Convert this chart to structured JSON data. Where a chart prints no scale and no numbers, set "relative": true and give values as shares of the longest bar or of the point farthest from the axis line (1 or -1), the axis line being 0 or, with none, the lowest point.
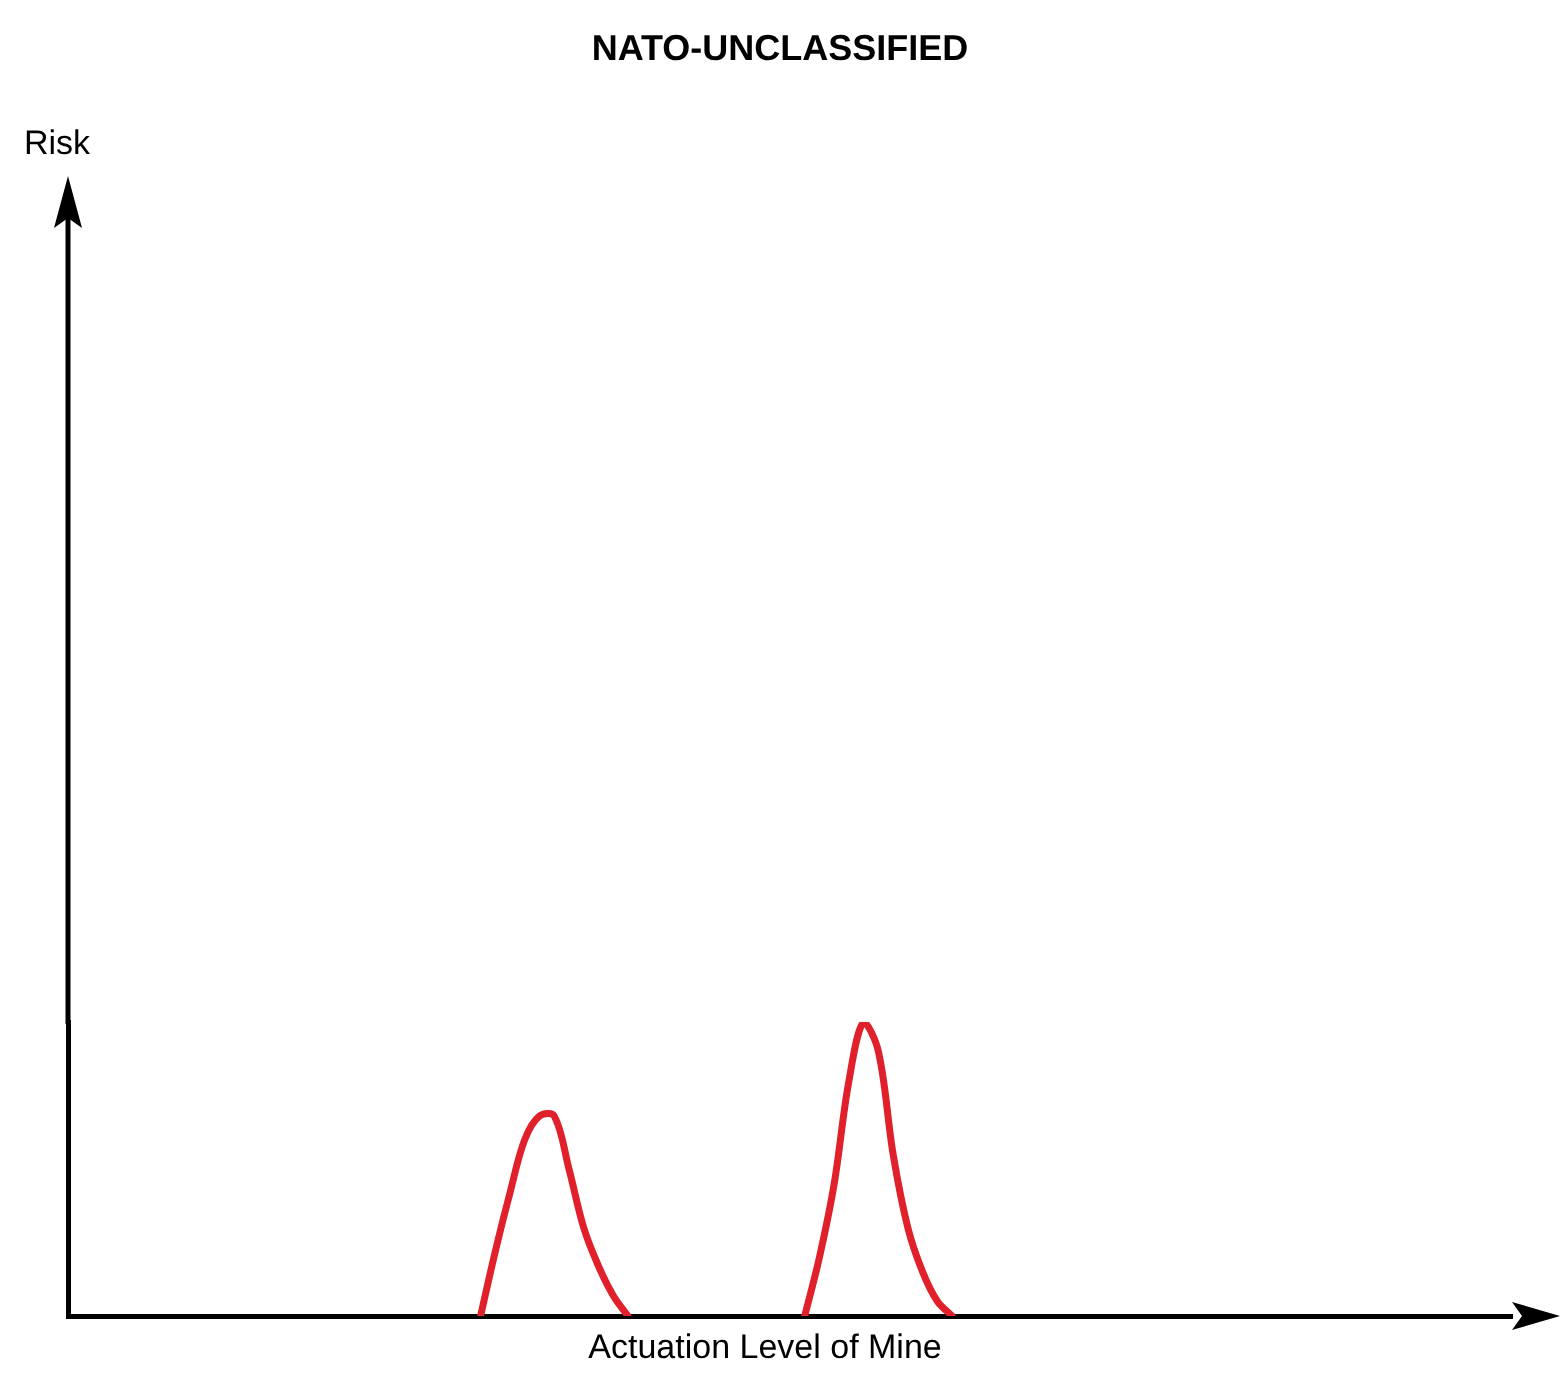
{
  "chart_data": {
    "type": "line",
    "title": "NATO-UNCLASSIFIED",
    "xlabel": "Actuation Level of Mine",
    "annotations": [
      "Risk"
    ],
    "relative": true,
    "legend": false,
    "grid": false,
    "marker": "none",
    "tick_labels": false,
    "categories": [
      null,
      null,
      null,
      null,
      null,
      null,
      null,
      null,
      null,
      null,
      null,
      null,
      null,
      null,
      null,
      null,
      null,
      null,
      null,
      null,
      null,
      null,
      null,
      null,
      null,
      null,
      null,
      null,
      null,
      null,
      null,
      null,
      null,
      null,
      null,
      null,
      null,
      null,
      null,
      null,
      null,
      null,
      null,
      null,
      null,
      null,
      null,
      null,
      null,
      null,
      null,
      null,
      null,
      null,
      null,
      null,
      null,
      null,
      null,
      null,
      null,
      null,
      null,
      null,
      null,
      null,
      null,
      null,
      null,
      null,
      null,
      null,
      null,
      null,
      null,
      null,
      null,
      null,
      null,
      null,
      null,
      null,
      null,
      null,
      null,
      null,
      null,
      null,
      null,
      null,
      null,
      null,
      null,
      null,
      null,
      null,
      null,
      null,
      null
    ],
    "series": [
      {
        "color": "#e0202a",
        "values": [
          null,
          null,
          null,
          null,
          null,
          null,
          null,
          null,
          null,
          null,
          null,
          null,
          null,
          null,
          null,
          null,
          null,
          null,
          null,
          null,
          null,
          null,
          null,
          null,
          null,
          null,
          null,
          null,
          0,
          0.22,
          0.42,
          0.6,
          0.68,
          0.68,
          0.5,
          0.3,
          0.17,
          0.07,
          0,
          null,
          null,
          null,
          null,
          null,
          null,
          null,
          null,
          null,
          null,
          null,
          null,
          null,
          null,
          null,
          null,
          null,
          null,
          null,
          null,
          null,
          null,
          null,
          null,
          null,
          null,
          null,
          null,
          null,
          null,
          null,
          null,
          null,
          null,
          null,
          null,
          null,
          null,
          null,
          null,
          null,
          null,
          null,
          null,
          null,
          null,
          null,
          null,
          null,
          null,
          null,
          null,
          null,
          null,
          null,
          null,
          null,
          null,
          null,
          null
        ]
      },
      {
        "color": "#e0202a",
        "values": [
          null,
          null,
          null,
          null,
          null,
          null,
          null,
          null,
          null,
          null,
          null,
          null,
          null,
          null,
          null,
          null,
          null,
          null,
          null,
          null,
          null,
          null,
          null,
          null,
          null,
          null,
          null,
          null,
          null,
          null,
          null,
          null,
          null,
          null,
          null,
          null,
          null,
          null,
          null,
          null,
          null,
          null,
          null,
          null,
          null,
          null,
          null,
          null,
          null,
          null,
          0,
          0.2,
          0.45,
          0.8,
          1,
          0.9,
          0.55,
          0.3,
          0.15,
          0.05,
          0,
          null,
          null,
          null,
          null,
          null,
          null,
          null,
          null,
          null,
          null,
          null,
          null,
          null,
          null,
          null,
          null,
          null,
          null,
          null,
          null,
          null,
          null,
          null,
          null,
          null,
          null,
          null,
          null,
          null,
          null,
          null,
          null,
          null,
          null,
          null,
          null,
          null,
          null
        ]
      }
    ]
  }
}
